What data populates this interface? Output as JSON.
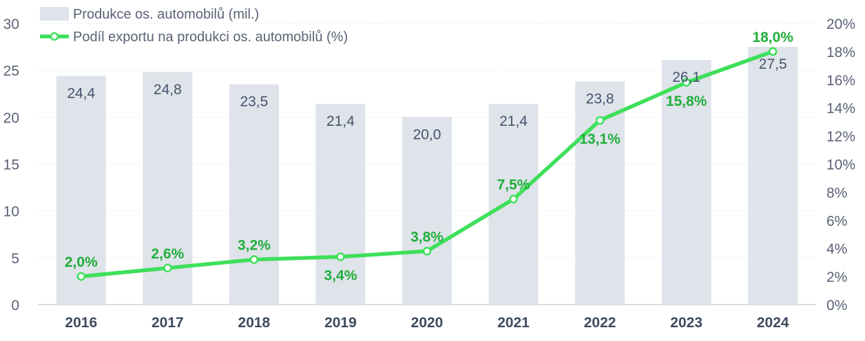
{
  "chart_data": {
    "type": "bar",
    "categories": [
      "2016",
      "2017",
      "2018",
      "2019",
      "2020",
      "2021",
      "2022",
      "2023",
      "2024"
    ],
    "series": [
      {
        "name": "Produkce os. automobilů (mil.)",
        "type": "bar",
        "axis": "left",
        "values": [
          24.4,
          24.8,
          23.5,
          21.4,
          20.0,
          21.4,
          23.8,
          26.1,
          27.5
        ],
        "labels": [
          "24,4",
          "24,8",
          "23,5",
          "21,4",
          "20,0",
          "21,4",
          "23,8",
          "26,1",
          "27,5"
        ],
        "color": "#dfe3ea"
      },
      {
        "name": "Podíl exportu na produkci os. automobilů (%)",
        "type": "line",
        "axis": "right",
        "values": [
          2.0,
          2.6,
          3.2,
          3.4,
          3.8,
          7.5,
          13.1,
          15.8,
          18.0
        ],
        "labels": [
          "2,0%",
          "2,6%",
          "3,2%",
          "3,4%",
          "3,8%",
          "7,5%",
          "13,1%",
          "15,8%",
          "18,0%"
        ],
        "label_pos": [
          "above",
          "above",
          "above",
          "below",
          "above",
          "above",
          "below",
          "below",
          "above"
        ],
        "color": "#3ee05a"
      }
    ],
    "y_left": {
      "ylim": [
        0,
        30
      ],
      "ticks": [
        "0",
        "5",
        "10",
        "15",
        "20",
        "25",
        "30"
      ],
      "tick_values": [
        0,
        5,
        10,
        15,
        20,
        25,
        30
      ]
    },
    "y_right": {
      "ylim": [
        0,
        20
      ],
      "ticks": [
        "0%",
        "2%",
        "4%",
        "6%",
        "8%",
        "10%",
        "12%",
        "14%",
        "16%",
        "18%",
        "20%"
      ],
      "tick_values": [
        0,
        2,
        4,
        6,
        8,
        10,
        12,
        14,
        16,
        18,
        20
      ]
    },
    "legend_position": "top-left",
    "grid": true,
    "title": "",
    "xlabel": "",
    "ylabel": ""
  }
}
